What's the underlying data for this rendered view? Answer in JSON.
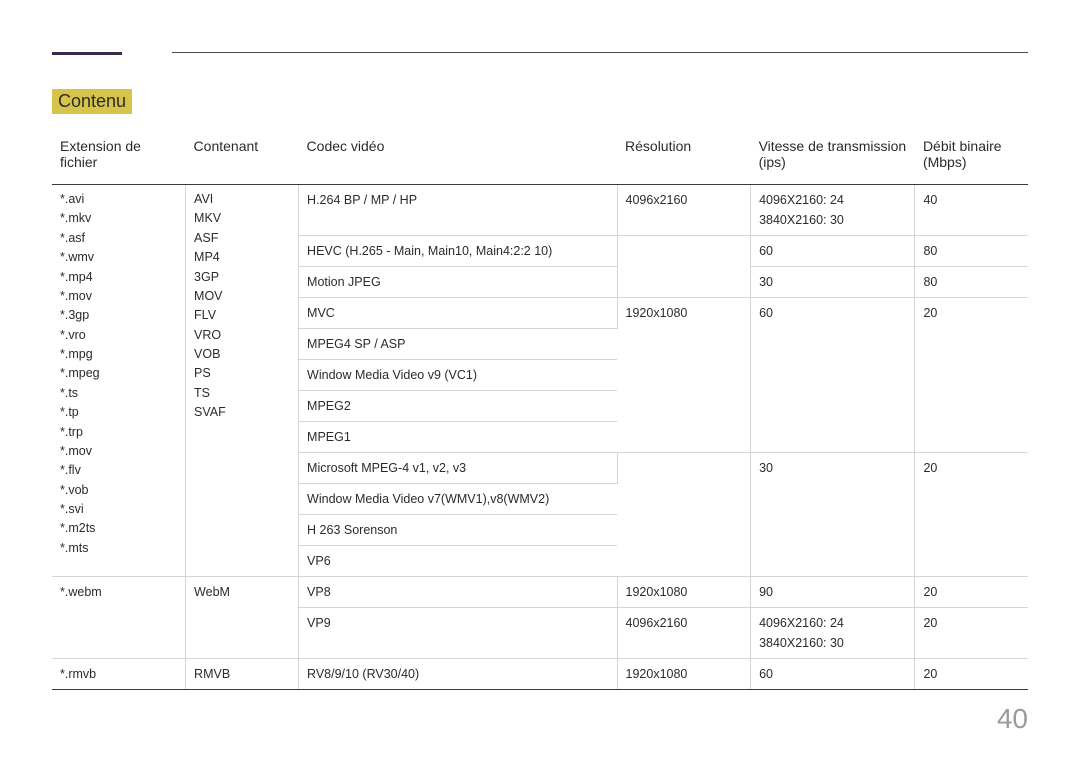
{
  "section_title": "Contenu",
  "page_number": "40",
  "columns": {
    "ext": "Extension de fichier",
    "cont": "Contenant",
    "codec": "Codec vidéo",
    "res": "Résolution",
    "fps": "Vitesse de transmission (ips)",
    "bitrate": "Débit binaire (Mbps)"
  },
  "ext_group1": [
    "*.avi",
    "*.mkv",
    "*.asf",
    "*.wmv",
    "*.mp4",
    "*.mov",
    "*.3gp",
    "*.vro",
    "*.mpg",
    "*.mpeg",
    "*.ts",
    "*.tp",
    "*.trp",
    "*.mov",
    "*.flv",
    "*.vob",
    "*.svi",
    "*.m2ts",
    "*.mts"
  ],
  "cont_group1": [
    "AVI",
    "MKV",
    "ASF",
    "MP4",
    "3GP",
    "MOV",
    "FLV",
    "VRO",
    "VOB",
    "PS",
    "TS",
    "SVAF"
  ],
  "codecs": {
    "h264": "H.264 BP / MP / HP",
    "hevc": "HEVC (H.265 - Main, Main10, Main4:2:2 10)",
    "mjpeg": "Motion JPEG",
    "mvc": "MVC",
    "mpeg4sp": "MPEG4 SP / ASP",
    "wmv9": "Window Media Video v9 (VC1)",
    "mpeg2": "MPEG2",
    "mpeg1": "MPEG1",
    "msmpeg4": "Microsoft MPEG-4 v1, v2, v3",
    "wmv78": "Window Media Video v7(WMV1),v8(WMV2)",
    "h263": "H 263 Sorenson",
    "vp6": "VP6",
    "vp8": "VP8",
    "vp9": "VP9",
    "rv": "RV8/9/10 (RV30/40)"
  },
  "res": {
    "r4k": "4096x2160",
    "r1080": "1920x1080"
  },
  "fps": {
    "f4k": "4096X2160: 24\n3840X2160: 30",
    "f60": "60",
    "f30": "30",
    "f90": "90"
  },
  "bitrate": {
    "b40": "40",
    "b80": "80",
    "b20": "20"
  },
  "ext_webm": "*.webm",
  "cont_webm": "WebM",
  "ext_rmvb": "*.rmvb",
  "cont_rmvb": "RMVB",
  "colwidths": {
    "ext": "130px",
    "cont": "110px",
    "codec": "310px",
    "res": "130px",
    "fps": "160px",
    "bitrate": "110px"
  },
  "colors": {
    "accent": "#3d2a4a",
    "highlight": "#d6c44a",
    "border": "#d5d5d5",
    "headline": "#3a3a3a"
  }
}
